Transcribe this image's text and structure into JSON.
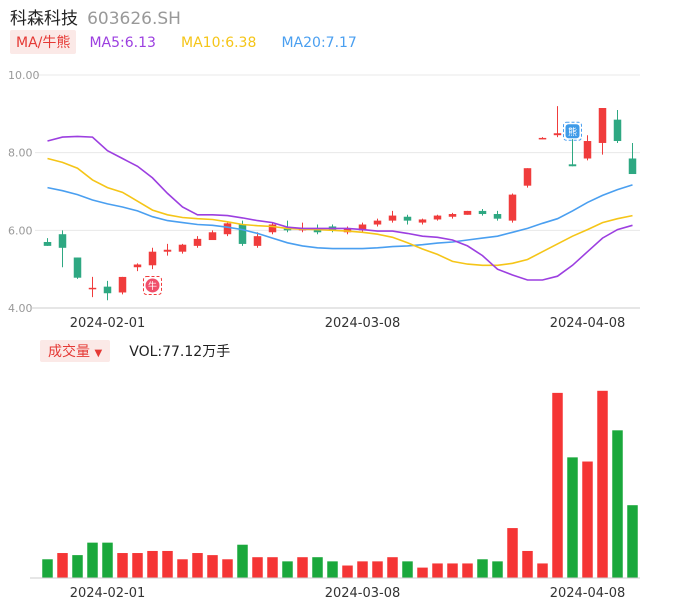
{
  "header": {
    "name": "科森科技",
    "code": "603626.SH"
  },
  "legend": {
    "ma_label": "MA/牛熊",
    "ma5": "MA5:6.13",
    "ma10": "MA10:6.38",
    "ma20": "MA20:7.17"
  },
  "volume_header": {
    "label": "成交量",
    "value": "VOL:77.12万手"
  },
  "colors": {
    "up": "#f03c3c",
    "down": "#2ea882",
    "vol_up": "#f53535",
    "vol_down": "#1aa83c",
    "ma5": "#9c3fe0",
    "ma10": "#f5c518",
    "ma20": "#4a9ff0",
    "grid": "#e8e8e8"
  },
  "markers": {
    "bull_label": "牛",
    "bear_label": "熊"
  },
  "chart_data": [
    {
      "type": "candlestick",
      "ylim": [
        4.0,
        10.0
      ],
      "yticks": [
        "10.00",
        "8.00",
        "6.00",
        "4.00"
      ],
      "xtick_labels": [
        "2024-02-01",
        "2024-03-08",
        "2024-04-08"
      ],
      "xtick_index": [
        4,
        21,
        36
      ],
      "grid": true,
      "candles": [
        {
          "o": 5.7,
          "h": 5.8,
          "l": 5.6,
          "c": 5.6
        },
        {
          "o": 5.9,
          "h": 6.0,
          "l": 5.05,
          "c": 5.55
        },
        {
          "o": 5.3,
          "h": 5.3,
          "l": 4.75,
          "c": 4.78
        },
        {
          "o": 4.5,
          "h": 4.8,
          "l": 4.28,
          "c": 4.52
        },
        {
          "o": 4.55,
          "h": 4.7,
          "l": 4.2,
          "c": 4.38
        },
        {
          "o": 4.4,
          "h": 4.8,
          "l": 4.35,
          "c": 4.8
        },
        {
          "o": 5.05,
          "h": 5.15,
          "l": 4.95,
          "c": 5.12
        },
        {
          "o": 5.1,
          "h": 5.55,
          "l": 5.0,
          "c": 5.45
        },
        {
          "o": 5.45,
          "h": 5.65,
          "l": 5.35,
          "c": 5.5
        },
        {
          "o": 5.45,
          "h": 5.65,
          "l": 5.4,
          "c": 5.63
        },
        {
          "o": 5.6,
          "h": 5.85,
          "l": 5.55,
          "c": 5.78
        },
        {
          "o": 5.75,
          "h": 6.0,
          "l": 5.75,
          "c": 5.95
        },
        {
          "o": 5.9,
          "h": 6.2,
          "l": 5.85,
          "c": 6.18
        },
        {
          "o": 6.15,
          "h": 6.25,
          "l": 5.6,
          "c": 5.65
        },
        {
          "o": 5.6,
          "h": 5.95,
          "l": 5.55,
          "c": 5.85
        },
        {
          "o": 5.95,
          "h": 6.2,
          "l": 5.9,
          "c": 6.15
        },
        {
          "o": 6.05,
          "h": 6.25,
          "l": 5.95,
          "c": 6.0
        },
        {
          "o": 6.0,
          "h": 6.2,
          "l": 5.95,
          "c": 6.05
        },
        {
          "o": 6.05,
          "h": 6.15,
          "l": 5.9,
          "c": 5.95
        },
        {
          "o": 6.1,
          "h": 6.15,
          "l": 5.95,
          "c": 6.0
        },
        {
          "o": 5.95,
          "h": 6.1,
          "l": 5.9,
          "c": 6.05
        },
        {
          "o": 6.0,
          "h": 6.2,
          "l": 5.95,
          "c": 6.15
        },
        {
          "o": 6.15,
          "h": 6.3,
          "l": 6.1,
          "c": 6.25
        },
        {
          "o": 6.25,
          "h": 6.5,
          "l": 6.2,
          "c": 6.38
        },
        {
          "o": 6.35,
          "h": 6.4,
          "l": 6.15,
          "c": 6.25
        },
        {
          "o": 6.2,
          "h": 6.3,
          "l": 6.15,
          "c": 6.28
        },
        {
          "o": 6.28,
          "h": 6.4,
          "l": 6.25,
          "c": 6.38
        },
        {
          "o": 6.35,
          "h": 6.45,
          "l": 6.3,
          "c": 6.42
        },
        {
          "o": 6.4,
          "h": 6.5,
          "l": 6.4,
          "c": 6.5
        },
        {
          "o": 6.5,
          "h": 6.55,
          "l": 6.38,
          "c": 6.42
        },
        {
          "o": 6.42,
          "h": 6.5,
          "l": 6.25,
          "c": 6.3
        },
        {
          "o": 6.25,
          "h": 6.95,
          "l": 6.2,
          "c": 6.92
        },
        {
          "o": 7.15,
          "h": 7.6,
          "l": 7.1,
          "c": 7.6
        },
        {
          "o": 8.35,
          "h": 8.4,
          "l": 8.35,
          "c": 8.38
        },
        {
          "o": 8.45,
          "h": 9.2,
          "l": 8.4,
          "c": 8.5
        },
        {
          "o": 7.7,
          "h": 8.35,
          "l": 7.65,
          "c": 7.65
        },
        {
          "o": 7.85,
          "h": 8.45,
          "l": 7.8,
          "c": 8.3
        },
        {
          "o": 8.25,
          "h": 9.15,
          "l": 7.95,
          "c": 9.15
        },
        {
          "o": 8.85,
          "h": 9.1,
          "l": 8.25,
          "c": 8.3
        },
        {
          "o": 7.85,
          "h": 8.25,
          "l": 7.45,
          "c": 7.45
        }
      ],
      "ma5": [
        8.3,
        8.4,
        8.42,
        8.4,
        8.05,
        7.85,
        7.65,
        7.35,
        6.95,
        6.6,
        6.4,
        6.4,
        6.38,
        6.32,
        6.25,
        6.2,
        6.08,
        6.05,
        6.05,
        6.05,
        6.05,
        6.02,
        5.98,
        5.98,
        5.92,
        5.85,
        5.82,
        5.75,
        5.6,
        5.35,
        5.0,
        4.85,
        4.72,
        4.72,
        4.82,
        5.1,
        5.45,
        5.8,
        6.02,
        6.13
      ],
      "ma10": [
        7.85,
        7.75,
        7.6,
        7.3,
        7.1,
        6.98,
        6.75,
        6.52,
        6.4,
        6.33,
        6.3,
        6.28,
        6.22,
        6.15,
        6.12,
        6.1,
        6.05,
        6.03,
        6.02,
        6.0,
        5.98,
        5.95,
        5.9,
        5.82,
        5.68,
        5.52,
        5.38,
        5.2,
        5.13,
        5.1,
        5.1,
        5.15,
        5.25,
        5.45,
        5.65,
        5.85,
        6.02,
        6.2,
        6.3,
        6.38
      ],
      "ma20": [
        7.1,
        7.02,
        6.92,
        6.78,
        6.68,
        6.6,
        6.5,
        6.35,
        6.25,
        6.2,
        6.15,
        6.13,
        6.08,
        6.02,
        5.92,
        5.8,
        5.68,
        5.6,
        5.55,
        5.53,
        5.53,
        5.53,
        5.55,
        5.58,
        5.6,
        5.63,
        5.67,
        5.7,
        5.75,
        5.8,
        5.85,
        5.95,
        6.05,
        6.18,
        6.3,
        6.5,
        6.72,
        6.9,
        7.05,
        7.17
      ]
    },
    {
      "type": "bar",
      "title": "成交量",
      "xtick_labels": [
        "2024-02-01",
        "2024-03-08",
        "2024-04-08"
      ],
      "xtick_index": [
        4,
        21,
        36
      ],
      "ylim": [
        0,
        100
      ],
      "volumes": [
        9,
        12,
        11,
        17,
        17,
        12,
        12,
        13,
        13,
        9,
        12,
        11,
        9,
        16,
        10,
        10,
        8,
        10,
        10,
        8,
        6,
        8,
        8,
        10,
        8,
        5,
        7,
        7,
        7,
        9,
        8,
        24,
        13,
        7,
        89,
        58,
        56,
        90,
        71,
        35
      ],
      "up": [
        false,
        true,
        false,
        false,
        false,
        true,
        true,
        true,
        true,
        true,
        true,
        true,
        true,
        false,
        true,
        true,
        false,
        true,
        false,
        false,
        true,
        true,
        true,
        true,
        false,
        true,
        true,
        true,
        true,
        false,
        false,
        true,
        true,
        true,
        true,
        false,
        true,
        true,
        false,
        false
      ]
    }
  ]
}
